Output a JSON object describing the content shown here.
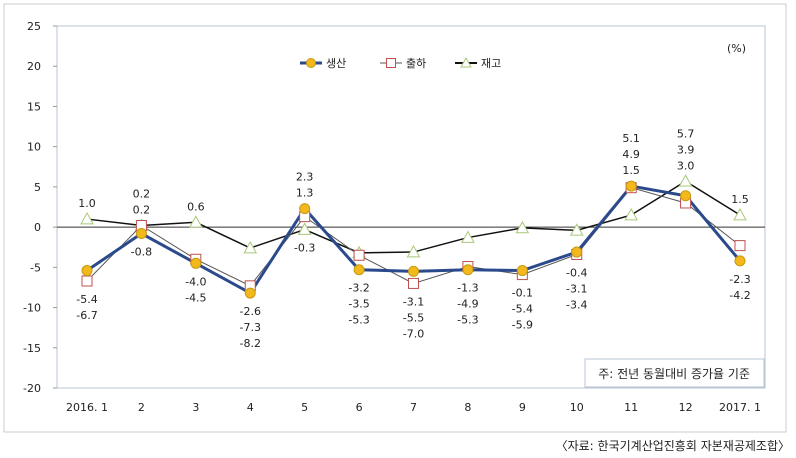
{
  "chart_data": {
    "type": "line",
    "unit_label": "(%)",
    "categories": [
      "2016. 1",
      "2",
      "3",
      "4",
      "5",
      "6",
      "7",
      "8",
      "9",
      "10",
      "11",
      "12",
      "2017. 1"
    ],
    "ylim": [
      -20,
      25
    ],
    "yticks": [
      -20,
      -15,
      -10,
      -5,
      0,
      5,
      10,
      15,
      20,
      25
    ],
    "grid": false,
    "legend_position": "top-center",
    "series": [
      {
        "name": "생산",
        "color": "#2b4a8c",
        "marker_color": "#f2b81c",
        "marker": "circle",
        "values": [
          -5.4,
          -0.8,
          -4.5,
          -8.2,
          2.3,
          -5.3,
          -5.5,
          -5.3,
          -5.4,
          -3.1,
          5.1,
          3.9,
          -4.2
        ]
      },
      {
        "name": "출하",
        "color": "#555555",
        "marker_color": "#c0504d",
        "marker": "square",
        "values": [
          -6.7,
          0.2,
          -4.0,
          -7.3,
          1.3,
          -3.5,
          -7.0,
          -4.9,
          -5.9,
          -3.4,
          4.9,
          3.0,
          -2.3
        ]
      },
      {
        "name": "재고",
        "color": "#111111",
        "marker_color": "#a8c878",
        "marker": "triangle",
        "values": [
          1.0,
          0.2,
          0.6,
          -2.6,
          -0.3,
          -3.2,
          -3.1,
          -1.3,
          -0.1,
          -0.4,
          1.5,
          5.7,
          1.5
        ]
      }
    ],
    "data_labels": [
      {
        "top": [
          "1.0"
        ],
        "bottom": [
          "-5.4",
          "-6.7"
        ]
      },
      {
        "top": [
          "0.2",
          "0.2"
        ],
        "bottom": [
          "-0.8"
        ]
      },
      {
        "top": [
          "0.6"
        ],
        "bottom": [
          "-4.0",
          "-4.5"
        ]
      },
      {
        "top": [],
        "bottom": [
          "-2.6",
          "-7.3",
          "-8.2"
        ]
      },
      {
        "top": [
          "2.3",
          "1.3"
        ],
        "bottom": [
          "-0.3"
        ]
      },
      {
        "top": [],
        "bottom": [
          "-3.2",
          "-3.5",
          "-5.3"
        ]
      },
      {
        "top": [],
        "bottom": [
          "-3.1",
          "-5.5",
          "-7.0"
        ]
      },
      {
        "top": [],
        "bottom": [
          "-1.3",
          "-4.9",
          "-5.3"
        ]
      },
      {
        "top": [],
        "bottom": [
          "-0.1",
          "-5.4",
          "-5.9"
        ]
      },
      {
        "top": [],
        "bottom": [
          "-0.4",
          "-3.1",
          "-3.4"
        ]
      },
      {
        "top": [
          "5.1",
          "4.9",
          "1.5"
        ],
        "bottom": []
      },
      {
        "top": [
          "5.7",
          "3.9",
          "3.0"
        ],
        "bottom": []
      },
      {
        "top": [
          "1.5"
        ],
        "bottom": [
          "-2.3",
          "-4.2"
        ]
      }
    ],
    "note": "주: 전년 동월대비 증가율 기준",
    "source": "〈자료: 한국기계산업진흥회 자본재공제조합〉"
  }
}
